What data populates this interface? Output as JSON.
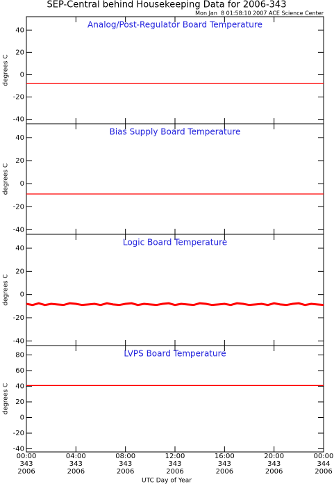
{
  "title": "SEP-Central behind Housekeeping Data for 2006-343",
  "subtitle": "Mon Jan  8 01:58:10 2007 ACE Science Center",
  "xlabel": "UTC Day of Year",
  "chart_data": [
    {
      "type": "line",
      "title": "Analog/Post-Regulator Board Temperature",
      "ylabel": "degrees C",
      "color": "#ff0000",
      "x": [
        0,
        24
      ],
      "values": [
        -8,
        -8
      ],
      "xlim": [
        0,
        24
      ],
      "ylim": [
        -44,
        52
      ],
      "yticks": [
        -40,
        -20,
        0,
        20,
        40
      ]
    },
    {
      "type": "line",
      "title": "Bias Supply Board Temperature",
      "ylabel": "degrees C",
      "color": "#ff0000",
      "x": [
        0,
        24
      ],
      "values": [
        -9,
        -9
      ],
      "xlim": [
        0,
        24
      ],
      "ylim": [
        -44,
        52
      ],
      "yticks": [
        -40,
        -20,
        0,
        20,
        40
      ]
    },
    {
      "type": "line",
      "title": "Logic Board Temperature",
      "ylabel": "degrees C",
      "color": "#ff0000",
      "x": [
        0,
        0.5,
        1,
        1.5,
        2,
        2.5,
        3,
        3.5,
        4,
        4.5,
        5,
        5.5,
        6,
        6.5,
        7,
        7.5,
        8,
        8.5,
        9,
        9.5,
        10,
        10.5,
        11,
        11.5,
        12,
        12.5,
        13,
        13.5,
        14,
        14.5,
        15,
        15.5,
        16,
        16.5,
        17,
        17.5,
        18,
        18.5,
        19,
        19.5,
        20,
        20.5,
        21,
        21.5,
        22,
        22.5,
        23,
        23.5,
        24
      ],
      "values": [
        -8,
        -9,
        -7.5,
        -9,
        -8,
        -8.5,
        -9,
        -7.5,
        -8,
        -9,
        -8.5,
        -8,
        -9,
        -7.5,
        -8.5,
        -9,
        -8,
        -7.5,
        -9,
        -8,
        -8.5,
        -9,
        -8,
        -7.5,
        -9,
        -8,
        -8.5,
        -9,
        -7.5,
        -8,
        -9,
        -8.5,
        -8,
        -9,
        -7.5,
        -8,
        -9,
        -8.5,
        -8,
        -9,
        -7.5,
        -8.5,
        -9,
        -8,
        -7.5,
        -9,
        -8,
        -8.5,
        -9
      ],
      "xlim": [
        0,
        24
      ],
      "ylim": [
        -44,
        52
      ],
      "yticks": [
        -40,
        -20,
        0,
        20,
        40
      ]
    },
    {
      "type": "line",
      "title": "LVPS Board Temperature",
      "ylabel": "degrees C",
      "color": "#ff0000",
      "x": [
        0,
        24
      ],
      "values": [
        41,
        41
      ],
      "xlim": [
        0,
        24
      ],
      "ylim": [
        -44,
        92
      ],
      "yticks": [
        -40,
        -20,
        0,
        20,
        40,
        60,
        80
      ],
      "xticks": [
        {
          "value": 0,
          "label": "00:00\n343\n2006"
        },
        {
          "value": 4,
          "label": "04:00\n343\n2006"
        },
        {
          "value": 8,
          "label": "08:00\n343\n2006"
        },
        {
          "value": 12,
          "label": "12:00\n343\n2006"
        },
        {
          "value": 16,
          "label": "16:00\n343\n2006"
        },
        {
          "value": 20,
          "label": "20:00\n343\n2006"
        },
        {
          "value": 24,
          "label": "00:00\n344\n2006"
        }
      ]
    }
  ]
}
